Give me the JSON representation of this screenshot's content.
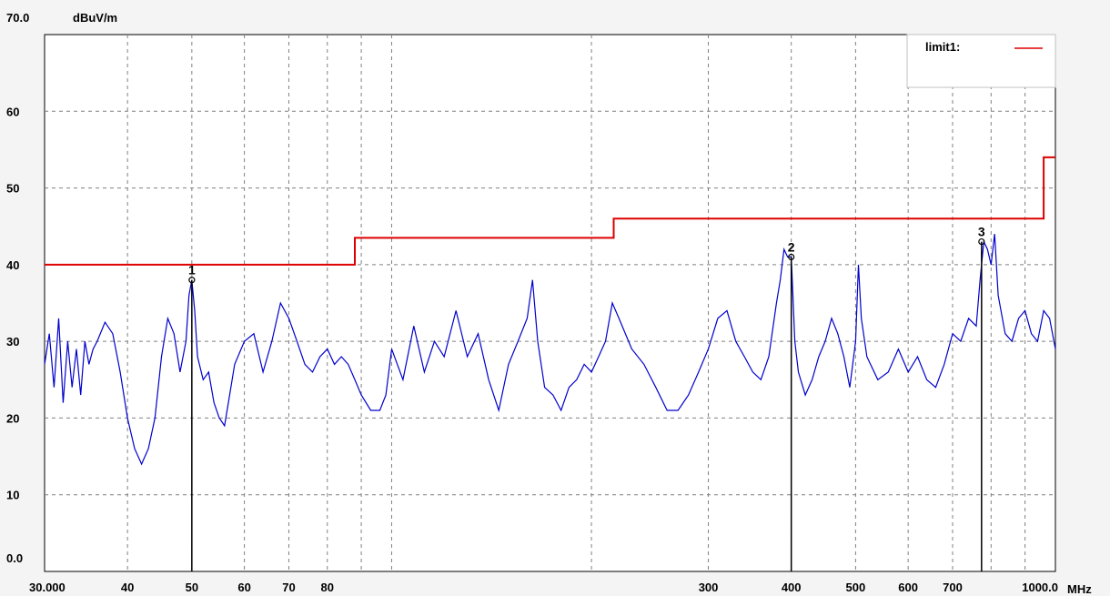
{
  "chart_data": {
    "type": "line",
    "title": "",
    "ylabel": "dBuV/m",
    "xlabel": "MHz",
    "xscale": "log",
    "xlim": [
      30,
      1000
    ],
    "ylim": [
      0,
      70
    ],
    "grid": true,
    "legend_position": "top-right",
    "y_ticks": [
      {
        "value": 70,
        "label": "70.0"
      },
      {
        "value": 60,
        "label": "60"
      },
      {
        "value": 50,
        "label": "50"
      },
      {
        "value": 40,
        "label": "40"
      },
      {
        "value": 30,
        "label": "30"
      },
      {
        "value": 20,
        "label": "20"
      },
      {
        "value": 10,
        "label": "10"
      },
      {
        "value": 0,
        "label": "0.0"
      }
    ],
    "x_ticks": [
      {
        "value": 30,
        "label": "30.000"
      },
      {
        "value": 40,
        "label": "40"
      },
      {
        "value": 50,
        "label": "50"
      },
      {
        "value": 60,
        "label": "60"
      },
      {
        "value": 70,
        "label": "70"
      },
      {
        "value": 80,
        "label": "80"
      },
      {
        "value": 300,
        "label": "300"
      },
      {
        "value": 400,
        "label": "400"
      },
      {
        "value": 500,
        "label": "500"
      },
      {
        "value": 600,
        "label": "600"
      },
      {
        "value": 700,
        "label": "700"
      },
      {
        "value": 1000,
        "label": "1000.0"
      }
    ],
    "x_grid": [
      30,
      40,
      50,
      60,
      70,
      80,
      90,
      100,
      200,
      300,
      400,
      500,
      600,
      700,
      800,
      900,
      1000
    ],
    "y_grid": [
      10,
      20,
      30,
      40,
      50,
      60,
      70
    ],
    "limit_line": {
      "name": "limit1:",
      "color": "#dd0000",
      "points": [
        [
          30,
          40
        ],
        [
          88,
          40
        ],
        [
          88,
          43.5
        ],
        [
          216,
          43.5
        ],
        [
          216,
          46
        ],
        [
          960,
          46
        ],
        [
          960,
          54
        ],
        [
          1000,
          54
        ]
      ]
    },
    "measurement": {
      "color": "#0000cc",
      "points": [
        [
          30,
          27
        ],
        [
          30.5,
          31
        ],
        [
          31,
          24
        ],
        [
          31.5,
          33
        ],
        [
          32,
          22
        ],
        [
          32.5,
          30
        ],
        [
          33,
          24
        ],
        [
          33.5,
          29
        ],
        [
          34,
          23
        ],
        [
          34.5,
          30
        ],
        [
          35,
          27
        ],
        [
          35.5,
          29
        ],
        [
          36,
          30
        ],
        [
          37,
          32.5
        ],
        [
          38,
          31
        ],
        [
          39,
          26
        ],
        [
          40,
          20
        ],
        [
          41,
          16
        ],
        [
          42,
          14
        ],
        [
          43,
          16
        ],
        [
          44,
          20
        ],
        [
          45,
          28
        ],
        [
          46,
          33
        ],
        [
          47,
          31
        ],
        [
          48,
          26
        ],
        [
          49,
          30
        ],
        [
          49.5,
          36
        ],
        [
          50,
          38
        ],
        [
          50.5,
          34
        ],
        [
          51,
          28
        ],
        [
          52,
          25
        ],
        [
          53,
          26
        ],
        [
          54,
          22
        ],
        [
          55,
          20
        ],
        [
          56,
          19
        ],
        [
          57,
          23
        ],
        [
          58,
          27
        ],
        [
          60,
          30
        ],
        [
          62,
          31
        ],
        [
          64,
          26
        ],
        [
          66,
          30
        ],
        [
          68,
          35
        ],
        [
          70,
          33
        ],
        [
          72,
          30
        ],
        [
          74,
          27
        ],
        [
          76,
          26
        ],
        [
          78,
          28
        ],
        [
          80,
          29
        ],
        [
          82,
          27
        ],
        [
          84,
          28
        ],
        [
          86,
          27
        ],
        [
          88,
          25
        ],
        [
          90,
          23
        ],
        [
          93,
          21
        ],
        [
          96,
          21
        ],
        [
          98,
          23
        ],
        [
          100,
          29
        ],
        [
          104,
          25
        ],
        [
          108,
          32
        ],
        [
          112,
          26
        ],
        [
          116,
          30
        ],
        [
          120,
          28
        ],
        [
          125,
          34
        ],
        [
          130,
          28
        ],
        [
          135,
          31
        ],
        [
          140,
          25
        ],
        [
          145,
          21
        ],
        [
          150,
          27
        ],
        [
          155,
          30
        ],
        [
          160,
          33
        ],
        [
          163,
          38
        ],
        [
          166,
          30
        ],
        [
          170,
          24
        ],
        [
          175,
          23
        ],
        [
          180,
          21
        ],
        [
          185,
          24
        ],
        [
          190,
          25
        ],
        [
          195,
          27
        ],
        [
          200,
          26
        ],
        [
          205,
          28
        ],
        [
          210,
          30
        ],
        [
          215,
          35
        ],
        [
          220,
          33
        ],
        [
          230,
          29
        ],
        [
          240,
          27
        ],
        [
          250,
          24
        ],
        [
          260,
          21
        ],
        [
          270,
          21
        ],
        [
          280,
          23
        ],
        [
          290,
          26
        ],
        [
          300,
          29
        ],
        [
          310,
          33
        ],
        [
          320,
          34
        ],
        [
          330,
          30
        ],
        [
          340,
          28
        ],
        [
          350,
          26
        ],
        [
          360,
          25
        ],
        [
          370,
          28
        ],
        [
          380,
          35
        ],
        [
          385,
          38
        ],
        [
          390,
          42
        ],
        [
          395,
          41
        ],
        [
          400,
          41
        ],
        [
          405,
          30
        ],
        [
          410,
          26
        ],
        [
          420,
          23
        ],
        [
          430,
          25
        ],
        [
          440,
          28
        ],
        [
          450,
          30
        ],
        [
          460,
          33
        ],
        [
          470,
          31
        ],
        [
          480,
          28
        ],
        [
          490,
          24
        ],
        [
          500,
          30
        ],
        [
          505,
          40
        ],
        [
          510,
          33
        ],
        [
          520,
          28
        ],
        [
          540,
          25
        ],
        [
          560,
          26
        ],
        [
          580,
          29
        ],
        [
          600,
          26
        ],
        [
          620,
          28
        ],
        [
          640,
          25
        ],
        [
          660,
          24
        ],
        [
          680,
          27
        ],
        [
          700,
          31
        ],
        [
          720,
          30
        ],
        [
          740,
          33
        ],
        [
          760,
          32
        ],
        [
          770,
          38
        ],
        [
          780,
          43
        ],
        [
          790,
          42
        ],
        [
          800,
          40
        ],
        [
          810,
          44
        ],
        [
          820,
          36
        ],
        [
          840,
          31
        ],
        [
          860,
          30
        ],
        [
          880,
          33
        ],
        [
          900,
          34
        ],
        [
          920,
          31
        ],
        [
          940,
          30
        ],
        [
          960,
          34
        ],
        [
          980,
          33
        ],
        [
          1000,
          29
        ]
      ]
    },
    "markers": [
      {
        "label": "1",
        "x": 50,
        "y": 38
      },
      {
        "label": "2",
        "x": 400,
        "y": 41
      },
      {
        "label": "3",
        "x": 774,
        "y": 43
      }
    ]
  }
}
